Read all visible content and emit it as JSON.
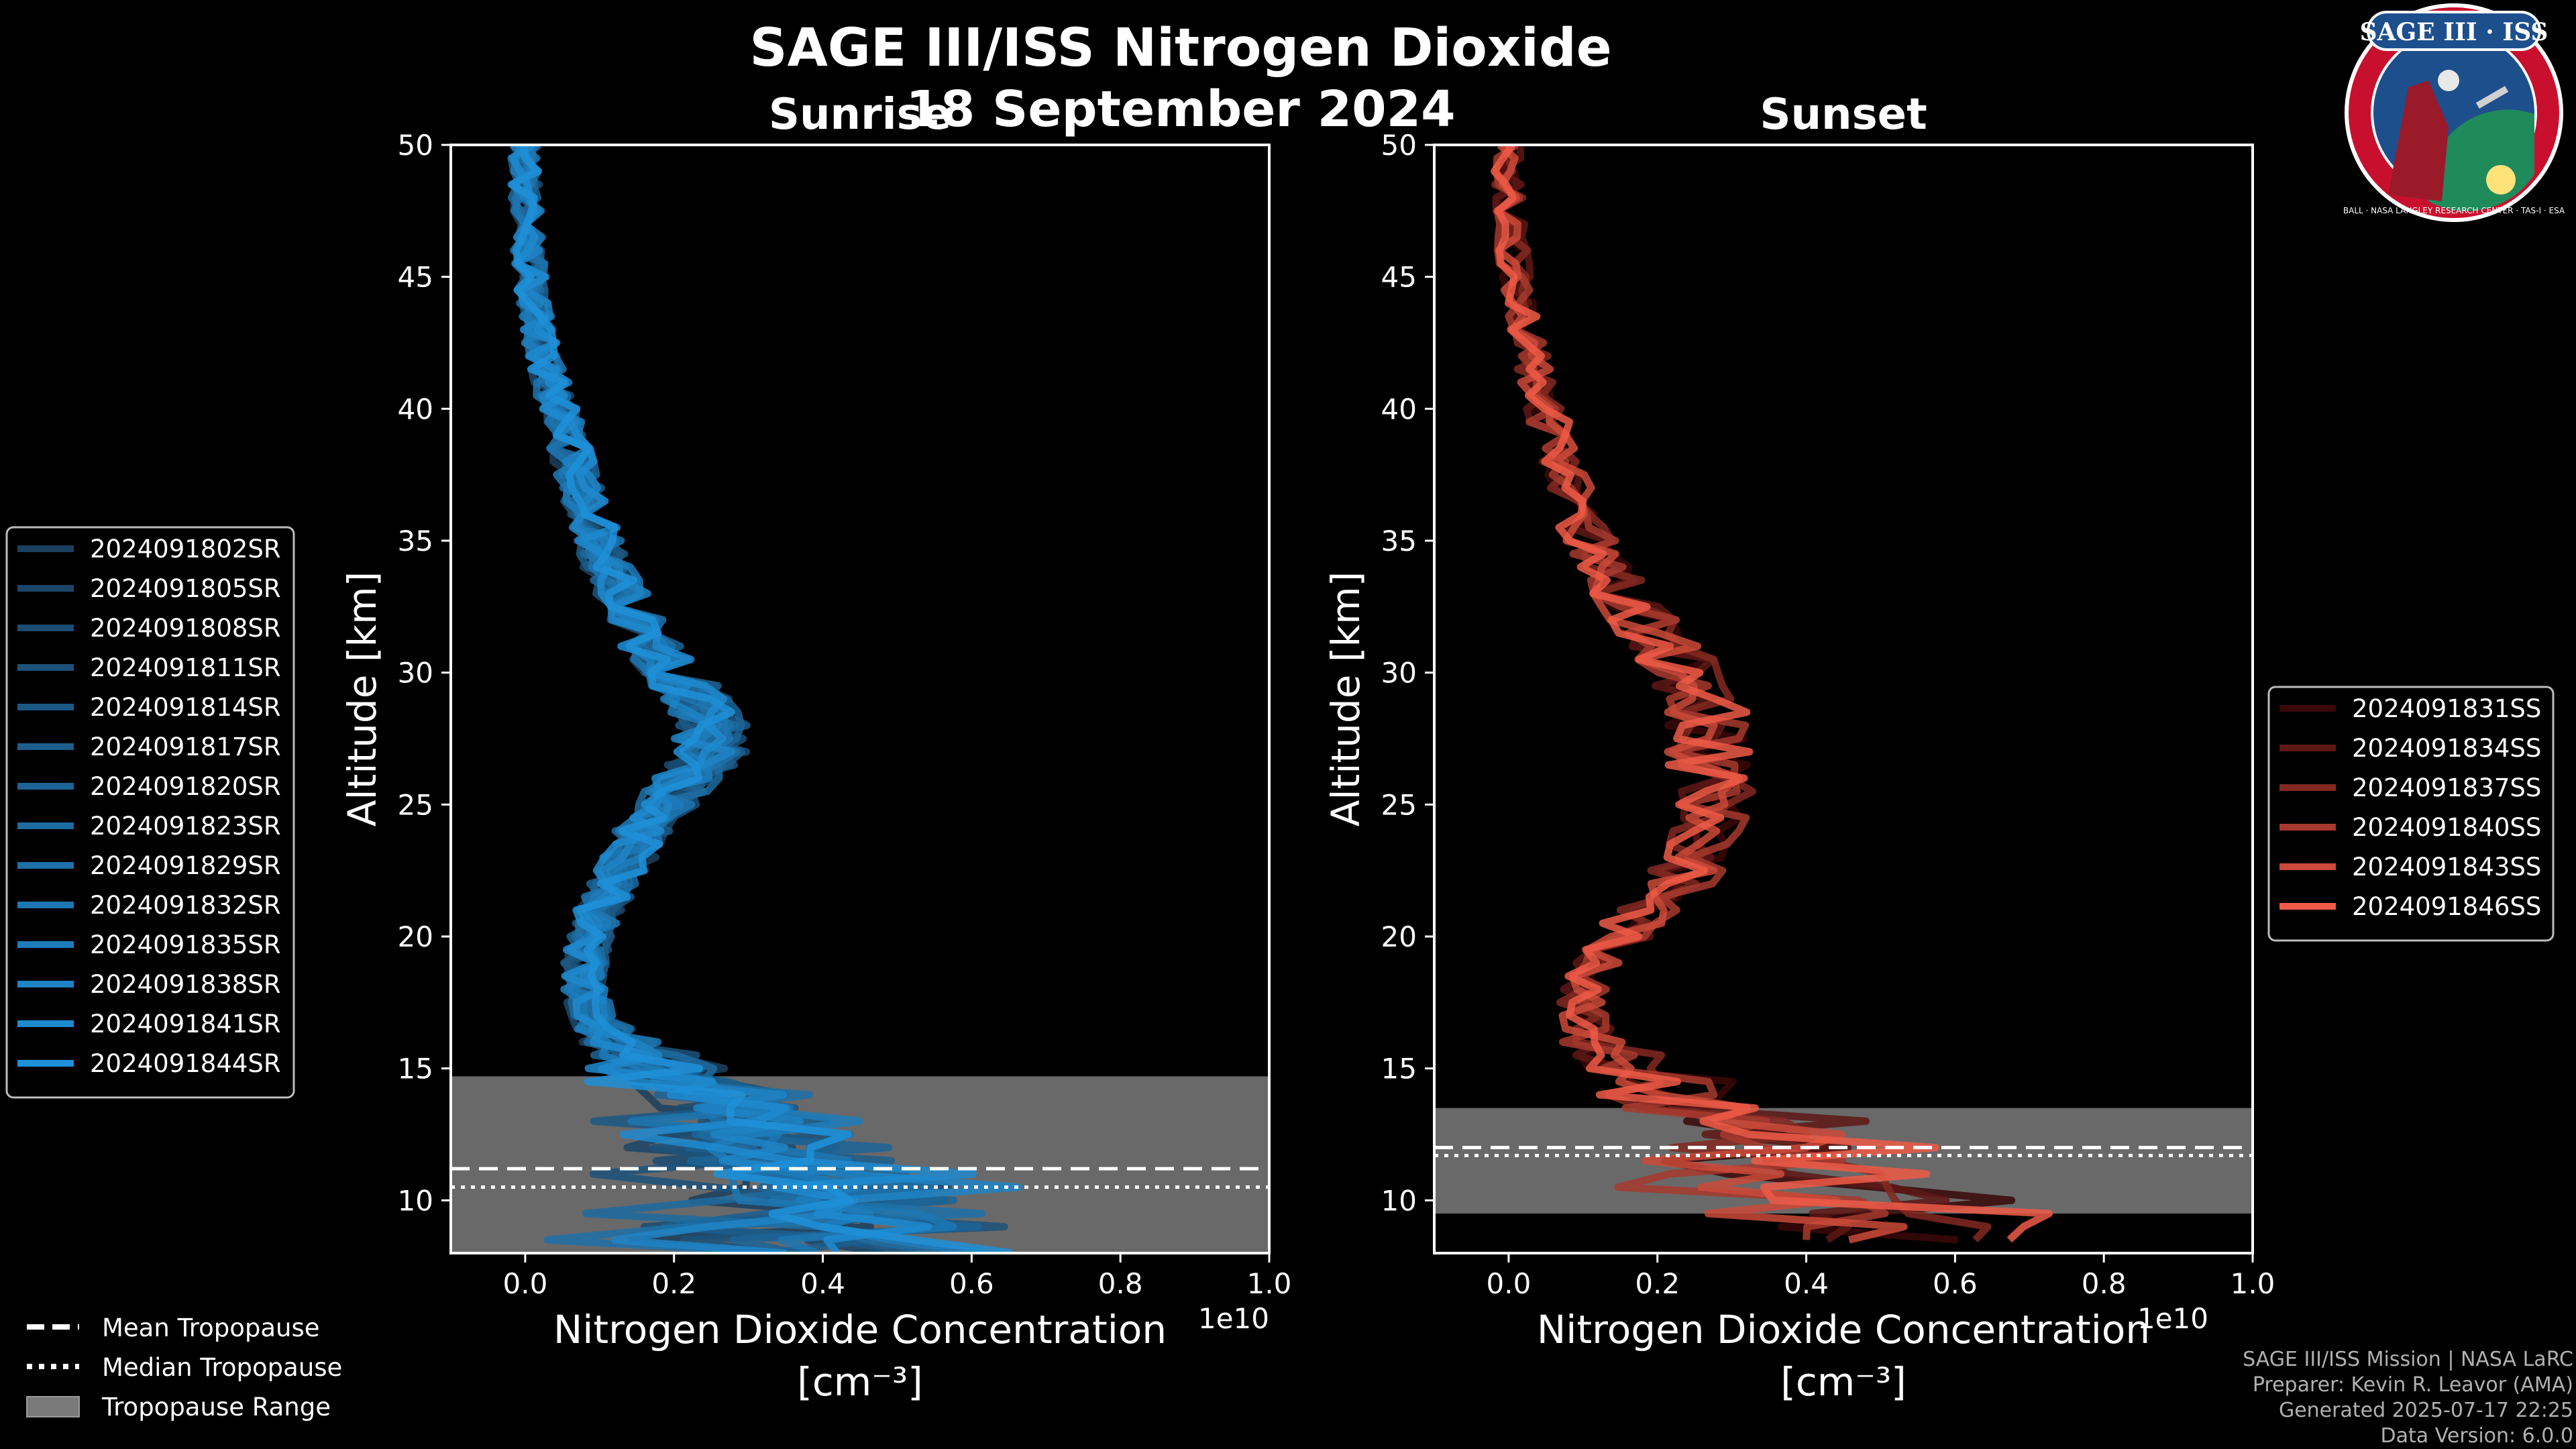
{
  "title": "SAGE III/ISS Nitrogen Dioxide",
  "date": "18 September 2024",
  "credits": [
    "SAGE III/ISS Mission | NASA LaRC",
    "Preparer: Kevin R. Leavor (AMA)",
    "Generated 2025-07-17 22:25",
    "Data Version: 6.0.0"
  ],
  "logo": {
    "text_top": "SAGE III · ISS",
    "text_ring": "BALL · NASA LANGLEY RESEARCH CENTER · TAS-I · ESA",
    "colors": {
      "ring": "#c8102e",
      "inner": "#1d4f8c"
    }
  },
  "tropo_legend": [
    {
      "label": "Mean Tropopause",
      "style": "dashed"
    },
    {
      "label": "Median Tropopause",
      "style": "dotted"
    },
    {
      "label": "Tropopause Range",
      "style": "patch"
    }
  ],
  "chart_data": [
    {
      "type": "line",
      "subtitle": "Sunrise",
      "xlabel": "Nitrogen Dioxide Concentration",
      "xlabel_unit": "[cm⁻³]",
      "ylabel": "Altitude [km]",
      "x_offset_text": "1e10",
      "xlim": [
        -1000000000.0,
        10000000000.0
      ],
      "ylim": [
        8,
        50
      ],
      "xticks": [
        0.0,
        0.2,
        0.4,
        0.6,
        0.8,
        1.0
      ],
      "yticks": [
        10,
        15,
        20,
        25,
        30,
        35,
        40,
        45,
        50
      ],
      "tropopause": {
        "mean": 11.2,
        "median": 10.5,
        "range": [
          8,
          14.7
        ]
      },
      "colors": {
        "start": "#1b3f5e",
        "end": "#1e90d8"
      },
      "mean_profile": [
        [
          8.0,
          4000000000.0
        ],
        [
          9.5,
          4000000000.0
        ],
        [
          11.0,
          3500000000.0
        ],
        [
          12.5,
          3000000000.0
        ],
        [
          14.0,
          2500000000.0
        ],
        [
          15.0,
          1800000000.0
        ],
        [
          16.0,
          1200000000.0
        ],
        [
          17.0,
          900000000.0
        ],
        [
          18.0,
          800000000.0
        ],
        [
          19.0,
          800000000.0
        ],
        [
          20.0,
          900000000.0
        ],
        [
          21.0,
          1000000000.0
        ],
        [
          22.0,
          1200000000.0
        ],
        [
          23.0,
          1400000000.0
        ],
        [
          24.0,
          1600000000.0
        ],
        [
          25.0,
          1900000000.0
        ],
        [
          26.0,
          2200000000.0
        ],
        [
          27.0,
          2500000000.0
        ],
        [
          28.0,
          2500000000.0
        ],
        [
          29.0,
          2300000000.0
        ],
        [
          30.0,
          2000000000.0
        ],
        [
          31.0,
          1700000000.0
        ],
        [
          32.0,
          1500000000.0
        ],
        [
          33.0,
          1300000000.0
        ],
        [
          34.0,
          1100000000.0
        ],
        [
          35.0,
          1000000000.0
        ],
        [
          36.0,
          850000000.0
        ],
        [
          37.0,
          750000000.0
        ],
        [
          38.0,
          650000000.0
        ],
        [
          39.0,
          550000000.0
        ],
        [
          40.0,
          450000000.0
        ],
        [
          41.0,
          350000000.0
        ],
        [
          42.0,
          250000000.0
        ],
        [
          43.0,
          170000000.0
        ],
        [
          44.0,
          120000000.0
        ],
        [
          45.0,
          80000000.0
        ],
        [
          46.0,
          40000000.0
        ],
        [
          47.0,
          20000000.0
        ],
        [
          48.0,
          10000000.0
        ],
        [
          49.0,
          0
        ],
        [
          50.0,
          0
        ]
      ],
      "series": [
        {
          "name": "2024091802SR"
        },
        {
          "name": "2024091805SR"
        },
        {
          "name": "2024091808SR"
        },
        {
          "name": "2024091811SR"
        },
        {
          "name": "2024091814SR"
        },
        {
          "name": "2024091817SR"
        },
        {
          "name": "2024091820SR"
        },
        {
          "name": "2024091823SR"
        },
        {
          "name": "2024091829SR"
        },
        {
          "name": "2024091832SR"
        },
        {
          "name": "2024091835SR"
        },
        {
          "name": "2024091838SR"
        },
        {
          "name": "2024091841SR"
        },
        {
          "name": "2024091844SR"
        }
      ]
    },
    {
      "type": "line",
      "subtitle": "Sunset",
      "xlabel": "Nitrogen Dioxide Concentration",
      "xlabel_unit": "[cm⁻³]",
      "ylabel": "Altitude [km]",
      "x_offset_text": "1e10",
      "xlim": [
        -1000000000.0,
        10000000000.0
      ],
      "ylim": [
        8,
        50
      ],
      "xticks": [
        0.0,
        0.2,
        0.4,
        0.6,
        0.8,
        1.0
      ],
      "yticks": [
        10,
        15,
        20,
        25,
        30,
        35,
        40,
        45,
        50
      ],
      "tropopause": {
        "mean": 12.0,
        "median": 11.7,
        "range": [
          9.5,
          13.5
        ]
      },
      "colors": {
        "start": "#3a0808",
        "end": "#ef5a47"
      },
      "mean_profile": [
        [
          8.5,
          5000000000.0
        ],
        [
          10.0,
          4500000000.0
        ],
        [
          11.0,
          4000000000.0
        ],
        [
          12.0,
          3500000000.0
        ],
        [
          13.0,
          3000000000.0
        ],
        [
          14.0,
          2200000000.0
        ],
        [
          15.0,
          1500000000.0
        ],
        [
          16.0,
          1100000000.0
        ],
        [
          17.0,
          1000000000.0
        ],
        [
          18.0,
          1000000000.0
        ],
        [
          19.0,
          1200000000.0
        ],
        [
          20.0,
          1500000000.0
        ],
        [
          21.0,
          1900000000.0
        ],
        [
          22.0,
          2300000000.0
        ],
        [
          23.0,
          2600000000.0
        ],
        [
          24.0,
          2800000000.0
        ],
        [
          25.0,
          2800000000.0
        ],
        [
          26.0,
          2700000000.0
        ],
        [
          27.0,
          2700000000.0
        ],
        [
          28.0,
          2700000000.0
        ],
        [
          29.0,
          2600000000.0
        ],
        [
          30.0,
          2400000000.0
        ],
        [
          31.0,
          2100000000.0
        ],
        [
          32.0,
          1800000000.0
        ],
        [
          33.0,
          1500000000.0
        ],
        [
          34.0,
          1300000000.0
        ],
        [
          35.0,
          1100000000.0
        ],
        [
          36.0,
          900000000.0
        ],
        [
          37.0,
          800000000.0
        ],
        [
          38.0,
          700000000.0
        ],
        [
          39.0,
          600000000.0
        ],
        [
          40.0,
          500000000.0
        ],
        [
          41.0,
          400000000.0
        ],
        [
          42.0,
          300000000.0
        ],
        [
          43.0,
          200000000.0
        ],
        [
          44.0,
          150000000.0
        ],
        [
          45.0,
          100000000.0
        ],
        [
          46.0,
          50000000.0
        ],
        [
          47.0,
          30000000.0
        ],
        [
          48.0,
          10000000.0
        ],
        [
          49.0,
          0
        ],
        [
          50.0,
          0
        ]
      ],
      "series": [
        {
          "name": "2024091831SS"
        },
        {
          "name": "2024091834SS"
        },
        {
          "name": "2024091837SS"
        },
        {
          "name": "2024091840SS"
        },
        {
          "name": "2024091843SS"
        },
        {
          "name": "2024091846SS"
        }
      ]
    }
  ]
}
